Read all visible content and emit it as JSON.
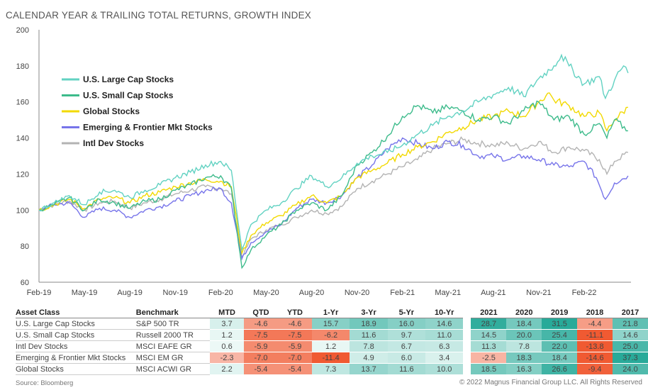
{
  "chart_data": {
    "type": "line",
    "title": "CALENDAR YEAR & TRAILING TOTAL RETURNS, GROWTH INDEX",
    "ylim": [
      60,
      200
    ],
    "yticks": [
      60,
      80,
      100,
      120,
      140,
      160,
      180,
      200
    ],
    "xticks": [
      "Feb-19",
      "May-19",
      "Aug-19",
      "Nov-19",
      "Feb-20",
      "May-20",
      "Aug-20",
      "Nov-20",
      "Feb-21",
      "May-21",
      "Aug-21",
      "Nov-21",
      "Feb-22"
    ],
    "series": [
      {
        "name": "U.S. Large Cap Stocks",
        "color": "#62d2c2",
        "points": [
          [
            0,
            100
          ],
          [
            1,
            104
          ],
          [
            2,
            108
          ],
          [
            3,
            103
          ],
          [
            4,
            110
          ],
          [
            5,
            111
          ],
          [
            6,
            107
          ],
          [
            7,
            111
          ],
          [
            8,
            114
          ],
          [
            9,
            118
          ],
          [
            10,
            121
          ],
          [
            11,
            125
          ],
          [
            12,
            127
          ],
          [
            12.7,
            122
          ],
          [
            13.4,
            78
          ],
          [
            14,
            92
          ],
          [
            15,
            100
          ],
          [
            16,
            104
          ],
          [
            17,
            112
          ],
          [
            18,
            119
          ],
          [
            19,
            113
          ],
          [
            20,
            118
          ],
          [
            21,
            126
          ],
          [
            22,
            130
          ],
          [
            23,
            132
          ],
          [
            24,
            136
          ],
          [
            25,
            142
          ],
          [
            26,
            147
          ],
          [
            27,
            152
          ],
          [
            28,
            155
          ],
          [
            29,
            160
          ],
          [
            30,
            164
          ],
          [
            31,
            168
          ],
          [
            32,
            163
          ],
          [
            33,
            173
          ],
          [
            34,
            180
          ],
          [
            34.5,
            186
          ],
          [
            35,
            180
          ],
          [
            36,
            170
          ],
          [
            37,
            174
          ],
          [
            37.4,
            162
          ],
          [
            38,
            172
          ],
          [
            38.6,
            180
          ],
          [
            38.9,
            176
          ]
        ]
      },
      {
        "name": "U.S. Small Cap Stocks",
        "color": "#3dbb8b",
        "points": [
          [
            0,
            100
          ],
          [
            1,
            103
          ],
          [
            2,
            107
          ],
          [
            3,
            100
          ],
          [
            4,
            106
          ],
          [
            5,
            104
          ],
          [
            6,
            101
          ],
          [
            7,
            105
          ],
          [
            8,
            106
          ],
          [
            9,
            111
          ],
          [
            10,
            114
          ],
          [
            11,
            118
          ],
          [
            12,
            119
          ],
          [
            12.7,
            112
          ],
          [
            13.4,
            68
          ],
          [
            14,
            78
          ],
          [
            15,
            86
          ],
          [
            16,
            92
          ],
          [
            17,
            100
          ],
          [
            18,
            104
          ],
          [
            19,
            100
          ],
          [
            20,
            108
          ],
          [
            21,
            125
          ],
          [
            22,
            132
          ],
          [
            23,
            141
          ],
          [
            24,
            152
          ],
          [
            25,
            158
          ],
          [
            26,
            154
          ],
          [
            27,
            157
          ],
          [
            28,
            155
          ],
          [
            29,
            150
          ],
          [
            30,
            152
          ],
          [
            31,
            148
          ],
          [
            32,
            155
          ],
          [
            33,
            160
          ],
          [
            34,
            150
          ],
          [
            35,
            152
          ],
          [
            36,
            142
          ],
          [
            37,
            148
          ],
          [
            37.5,
            140
          ],
          [
            38,
            150
          ],
          [
            38.9,
            144
          ]
        ]
      },
      {
        "name": "Global Stocks",
        "color": "#f2d900",
        "points": [
          [
            0,
            100
          ],
          [
            1,
            103
          ],
          [
            2,
            106
          ],
          [
            3,
            101
          ],
          [
            4,
            106
          ],
          [
            5,
            107
          ],
          [
            6,
            104
          ],
          [
            7,
            108
          ],
          [
            8,
            110
          ],
          [
            9,
            113
          ],
          [
            10,
            115
          ],
          [
            11,
            117
          ],
          [
            12,
            116
          ],
          [
            12.7,
            113
          ],
          [
            13.4,
            76
          ],
          [
            14,
            86
          ],
          [
            15,
            93
          ],
          [
            16,
            97
          ],
          [
            17,
            103
          ],
          [
            18,
            108
          ],
          [
            19,
            104
          ],
          [
            20,
            108
          ],
          [
            21,
            118
          ],
          [
            22,
            122
          ],
          [
            23,
            126
          ],
          [
            24,
            131
          ],
          [
            25,
            135
          ],
          [
            26,
            138
          ],
          [
            27,
            143
          ],
          [
            28,
            146
          ],
          [
            29,
            150
          ],
          [
            30,
            152
          ],
          [
            31,
            155
          ],
          [
            32,
            152
          ],
          [
            33,
            160
          ],
          [
            33.7,
            165
          ],
          [
            34,
            161
          ],
          [
            35,
            158
          ],
          [
            36,
            152
          ],
          [
            37,
            154
          ],
          [
            37.5,
            144
          ],
          [
            38,
            150
          ],
          [
            38.9,
            157
          ]
        ]
      },
      {
        "name": "Emerging & Frontier Mkt Stocks",
        "color": "#7774ea",
        "points": [
          [
            0,
            100
          ],
          [
            1,
            103
          ],
          [
            2,
            104
          ],
          [
            3,
            96
          ],
          [
            4,
            101
          ],
          [
            5,
            100
          ],
          [
            6,
            96
          ],
          [
            7,
            100
          ],
          [
            8,
            102
          ],
          [
            9,
            105
          ],
          [
            10,
            108
          ],
          [
            11,
            111
          ],
          [
            12,
            112
          ],
          [
            12.7,
            104
          ],
          [
            13.4,
            73
          ],
          [
            14,
            82
          ],
          [
            15,
            88
          ],
          [
            16,
            92
          ],
          [
            17,
            101
          ],
          [
            18,
            106
          ],
          [
            19,
            104
          ],
          [
            20,
            108
          ],
          [
            21,
            118
          ],
          [
            22,
            125
          ],
          [
            23,
            134
          ],
          [
            24,
            140
          ],
          [
            25,
            137
          ],
          [
            26,
            134
          ],
          [
            27,
            138
          ],
          [
            28,
            136
          ],
          [
            29,
            130
          ],
          [
            30,
            130
          ],
          [
            31,
            128
          ],
          [
            32,
            130
          ],
          [
            33,
            128
          ],
          [
            34,
            125
          ],
          [
            35,
            124
          ],
          [
            36,
            127
          ],
          [
            36.8,
            118
          ],
          [
            37.4,
            106
          ],
          [
            38,
            115
          ],
          [
            38.9,
            119
          ]
        ]
      },
      {
        "name": "Intl Dev Stocks",
        "color": "#b3b3b3",
        "points": [
          [
            0,
            100
          ],
          [
            1,
            103
          ],
          [
            2,
            105
          ],
          [
            3,
            100
          ],
          [
            4,
            104
          ],
          [
            5,
            105
          ],
          [
            6,
            101
          ],
          [
            7,
            104
          ],
          [
            8,
            106
          ],
          [
            9,
            109
          ],
          [
            10,
            111
          ],
          [
            11,
            113
          ],
          [
            12,
            112
          ],
          [
            12.7,
            109
          ],
          [
            13.4,
            74
          ],
          [
            14,
            84
          ],
          [
            15,
            89
          ],
          [
            16,
            92
          ],
          [
            17,
            96
          ],
          [
            18,
            100
          ],
          [
            19,
            98
          ],
          [
            20,
            102
          ],
          [
            21,
            112
          ],
          [
            22,
            116
          ],
          [
            23,
            120
          ],
          [
            24,
            124
          ],
          [
            25,
            128
          ],
          [
            26,
            134
          ],
          [
            27,
            137
          ],
          [
            28,
            139
          ],
          [
            29,
            137
          ],
          [
            30,
            136
          ],
          [
            31,
            137
          ],
          [
            32,
            134
          ],
          [
            33,
            138
          ],
          [
            34,
            132
          ],
          [
            35,
            135
          ],
          [
            36,
            133
          ],
          [
            37,
            128
          ],
          [
            37.5,
            120
          ],
          [
            38,
            127
          ],
          [
            38.9,
            132
          ]
        ]
      }
    ]
  },
  "table": {
    "headers": [
      "Asset Class",
      "Benchmark",
      "MTD",
      "QTD",
      "YTD",
      "1-Yr",
      "3-Yr",
      "5-Yr",
      "10-Yr",
      "2021",
      "2020",
      "2019",
      "2018",
      "2017"
    ],
    "rows": [
      {
        "asset": "U.S. Large Cap Stocks",
        "bench": "S&P 500 TR",
        "vals": [
          "3.7",
          "-4.6",
          "-4.6",
          "15.7",
          "18.9",
          "16.0",
          "14.6",
          "28.7",
          "18.4",
          "31.5",
          "-4.4",
          "21.8"
        ]
      },
      {
        "asset": "U.S. Small Cap Stocks",
        "bench": "Russell 2000 TR",
        "vals": [
          "1.2",
          "-7.5",
          "-7.5",
          "-6.2",
          "11.6",
          "9.7",
          "11.0",
          "14.5",
          "20.0",
          "25.4",
          "-11.1",
          "14.6"
        ]
      },
      {
        "asset": "Intl Dev Stocks",
        "bench": "MSCI EAFE GR",
        "vals": [
          "0.6",
          "-5.9",
          "-5.9",
          "1.2",
          "7.8",
          "6.7",
          "6.3",
          "11.3",
          "7.8",
          "22.0",
          "-13.8",
          "25.0"
        ]
      },
      {
        "asset": "Emerging & Frontier Mkt Stocks",
        "bench": "MSCI EM GR",
        "vals": [
          "-2.3",
          "-7.0",
          "-7.0",
          "-11.4",
          "4.9",
          "6.0",
          "3.4",
          "-2.5",
          "18.3",
          "18.4",
          "-14.6",
          "37.3"
        ]
      },
      {
        "asset": "Global Stocks",
        "bench": "MSCI ACWI GR",
        "vals": [
          "2.2",
          "-5.4",
          "-5.4",
          "7.3",
          "13.7",
          "11.6",
          "10.0",
          "18.5",
          "16.3",
          "26.6",
          "-9.4",
          "24.0"
        ]
      }
    ]
  },
  "source": "Source: Bloomberg",
  "copyright": "© 2022 Magnus Financial Group LLC. All Rights Reserved"
}
